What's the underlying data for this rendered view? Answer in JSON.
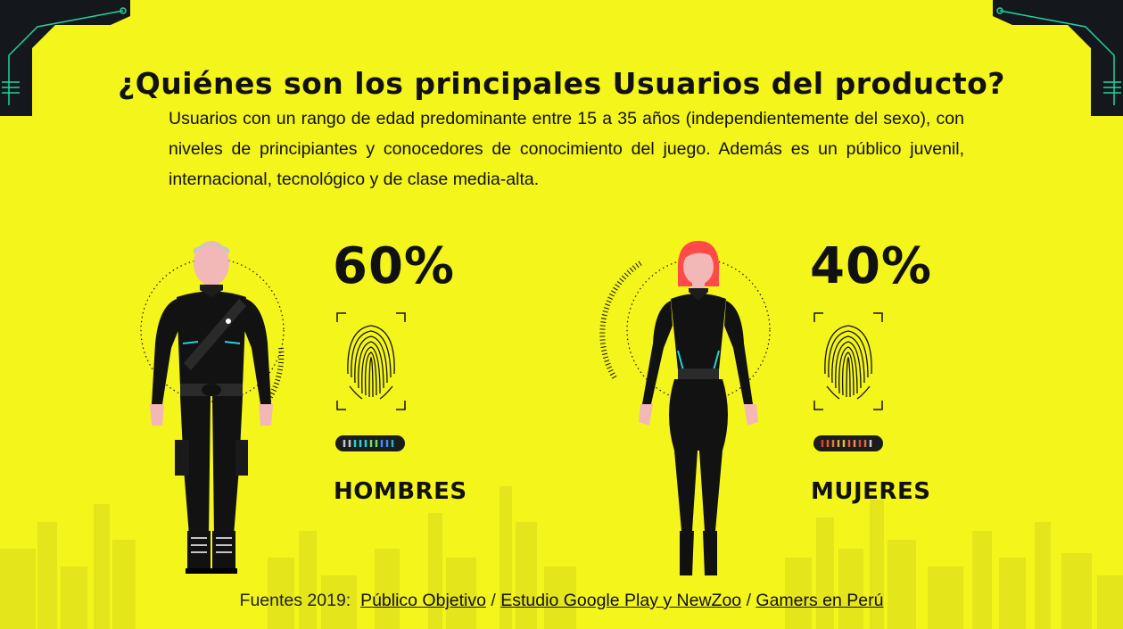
{
  "title": "¿Quiénes son los principales Usuarios del producto?",
  "description": "Usuarios con un rango de edad predominante entre 15 a 35 años (independientemente del sexo), con niveles de principiantes y conocedores de conocimiento del juego. Además es un público juvenil, internacional, tecnológico y de clase media-alta.",
  "men": {
    "percent": "60%",
    "label": "HOMBRES",
    "share": 0.6
  },
  "women": {
    "percent": "40%",
    "label": "MUJERES",
    "share": 0.4
  },
  "sources": {
    "prefix": "Fuentes 2019:",
    "separator": "/",
    "links": [
      "Público Objetivo",
      "Estudio Google Play y NewZoo",
      "Gamers en Perú"
    ]
  },
  "colors": {
    "background": "#f4f51a",
    "text": "#111111",
    "accent_cyan": "#22d3d9",
    "hair_women": "#ff4a4a",
    "skin": "#f2b7b7",
    "corner_dark": "#14181c"
  },
  "icons": [
    "fingerprint-icon",
    "signal-meter-icon",
    "corner-circuit-icon"
  ]
}
